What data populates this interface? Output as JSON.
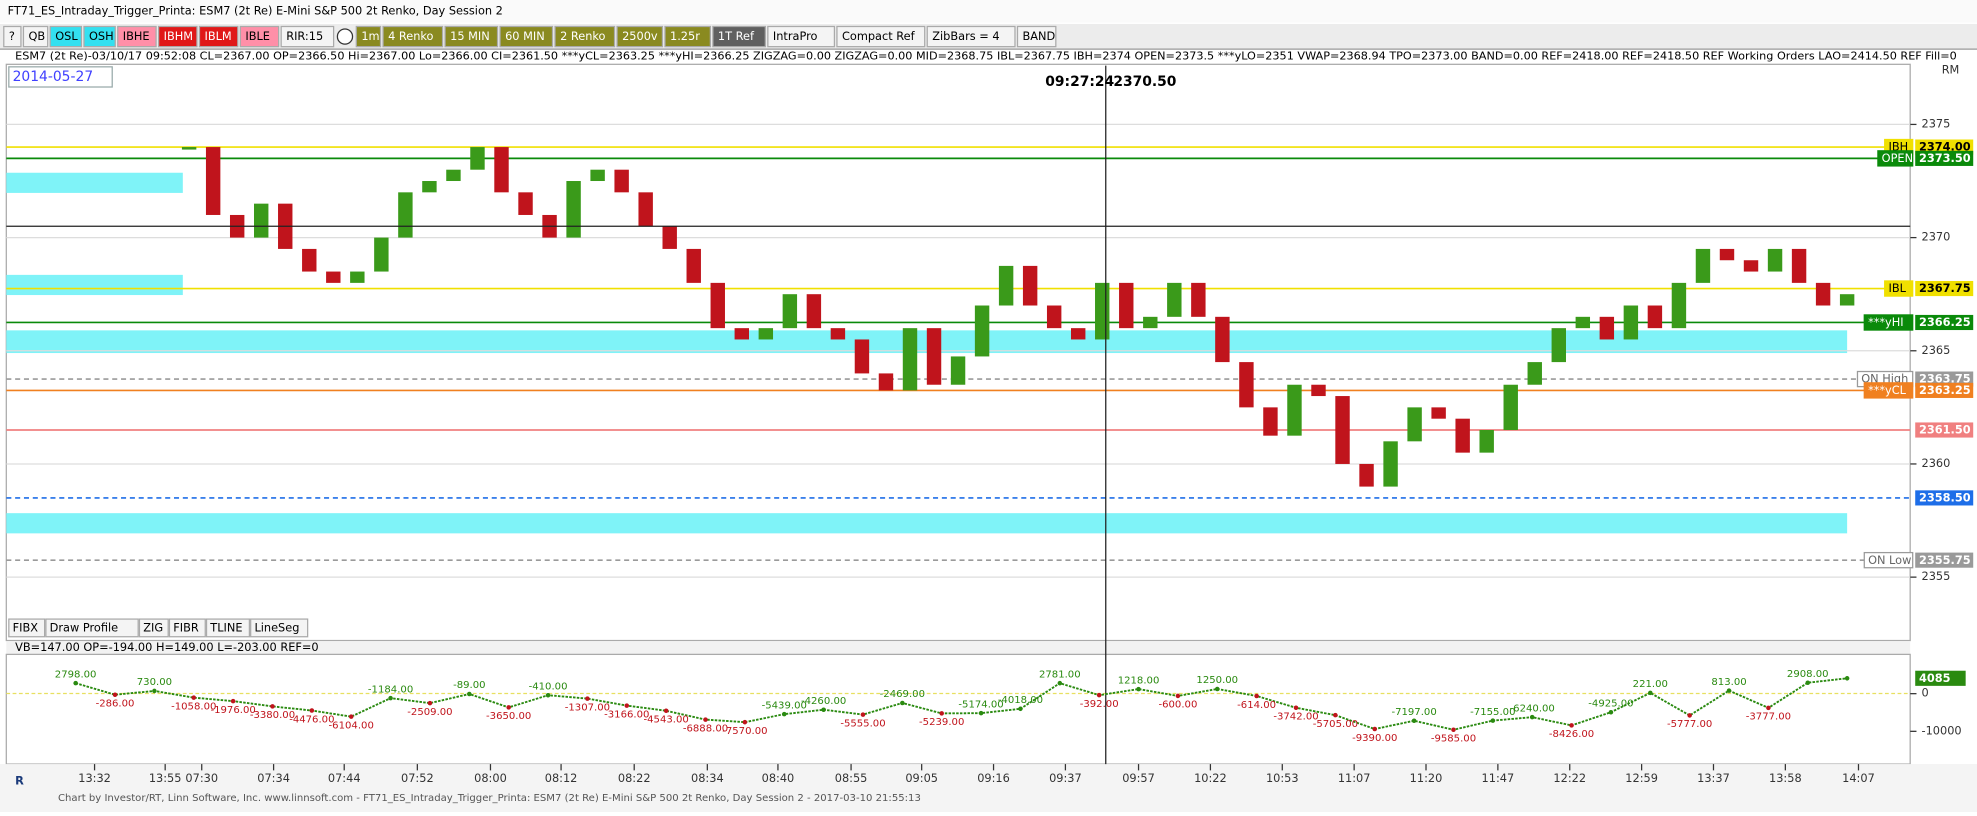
{
  "window": {
    "title": "FT71_ES_Intraday_Trigger_Printa: ESM7 (2t Re) E-Mini S&P 500 2t Renko, Day Session 2"
  },
  "toolbar": [
    {
      "label": "?",
      "color": "#f4f4f4"
    },
    {
      "label": "QB",
      "color": "#f4f4f4"
    },
    {
      "label": "OSL",
      "color": "#33e0f0"
    },
    {
      "label": "OSH",
      "color": "#33e0f0"
    },
    {
      "label": "IBHE",
      "color": "#ff8fa8"
    },
    {
      "label": "IBHM",
      "color": "#e01818"
    },
    {
      "label": "IBLM",
      "color": "#e01818"
    },
    {
      "label": "IBLE",
      "color": "#ff8fa8"
    },
    {
      "label": "RIR:15",
      "color": "#f4f4f4"
    },
    {
      "label": "1m",
      "color": "#8a8a20"
    },
    {
      "label": "4 Renko",
      "color": "#8a8a20"
    },
    {
      "label": "15 MIN",
      "color": "#8a8a20"
    },
    {
      "label": "60 MIN",
      "color": "#8a8a20"
    },
    {
      "label": "2 Renko",
      "color": "#8a8a20"
    },
    {
      "label": "2500v",
      "color": "#8a8a20"
    },
    {
      "label": "1.25r",
      "color": "#8a8a20"
    },
    {
      "label": "1T Ref",
      "color": "#606060"
    },
    {
      "label": "IntraPro",
      "color": "#f4f4f4"
    },
    {
      "label": "Compact Ref",
      "color": "#f4f4f4"
    },
    {
      "label": "ZibBars = 4",
      "color": "#f4f4f4"
    },
    {
      "label": "BAND",
      "color": "#f4f4f4"
    }
  ],
  "indicator_legend": "ESM7 (2t Re)-03/10/17 09:52:08 CL=2367.00 OP=2366.50 Hi=2367.00 Lo=2366.00 CI=2361.50 ***yCL=2363.25 ***yHI=2366.25 ZIGZAG=0.00 ZIGZAG=0.00 MID=2368.75 IBL=2367.75 IBH=2374 OPEN=2373.5 ***yLO=2351 VWAP=2368.94 TPO=2373.00 BAND=0.00 REF=2418.00 REF=2418.50 REF Working Orders LAO=2414.50 REF Fill=0",
  "date_label": "2014-05-27",
  "drawing_tools": [
    "FIBX",
    "Draw Profile",
    "ZIG",
    "FIBR",
    "TLINE",
    "LineSeg"
  ],
  "corner_label": "RM",
  "chart_data": [
    {
      "type": "renko",
      "ylim": [
        2352.2,
        2377.6
      ],
      "yticks": [
        2355,
        2360,
        2365,
        2370,
        2375
      ],
      "up_color": "#3a9a1a",
      "down_color": "#c0141c",
      "values": [
        2374,
        2371,
        2370,
        2371.5,
        2369.5,
        2368.5,
        2368,
        2368.5,
        2370,
        2372,
        2372.5,
        2373,
        2374,
        2372,
        2371,
        2370,
        2372.5,
        2373,
        2372,
        2370.5,
        2369.5,
        2368,
        2366,
        2365.5,
        2366,
        2367.5,
        2366,
        2365.5,
        2364,
        2363.25,
        2366,
        2363.5,
        2364.75,
        2367,
        2368.75,
        2367,
        2366,
        2365.5,
        2368,
        2366,
        2366.5,
        2368,
        2366.5,
        2364.5,
        2362.5,
        2361.25,
        2363.5,
        2363,
        2360,
        2359,
        2361,
        2362.5,
        2362,
        2360.5,
        2361.5,
        2363.5,
        2364.5,
        2366,
        2366.5,
        2365.5,
        2367,
        2366,
        2368,
        2369.5,
        2369,
        2368.5,
        2369.5,
        2368,
        2367,
        2367.5
      ],
      "x_labels": [
        "13:32",
        "13:55",
        "07:30",
        "07:34",
        "07:44",
        "07:52",
        "08:00",
        "08:12",
        "08:22",
        "08:34",
        "08:40",
        "08:55",
        "09:05",
        "09:16",
        "09:37",
        "09:57",
        "10:22",
        "10:53",
        "11:07",
        "11:20",
        "11:47",
        "12:22",
        "12:59",
        "13:37",
        "13:58",
        "14:07"
      ],
      "levels": [
        {
          "name": "IBH",
          "value": 2374,
          "value_label": "2374.00",
          "color": "#f0e000"
        },
        {
          "name": "OPEN",
          "value": 2373.5,
          "value_label": "2373.50",
          "color": "#0a8a0a"
        },
        {
          "name": "IBL",
          "value": 2367.75,
          "value_label": "2367.75",
          "color": "#f0e000"
        },
        {
          "name": "***yHI",
          "value": 2366.25,
          "value_label": "2366.25",
          "color": "#0a8a0a"
        },
        {
          "name": "ON High",
          "value": 2363.75,
          "value_label": "2363.75",
          "color": "#9a9a9a"
        },
        {
          "name": "***yCL",
          "value": 2363.25,
          "value_label": "2363.25",
          "color": "#f08020"
        },
        {
          "value": 2361.5,
          "value_label": "2361.50",
          "color": "#f08080"
        },
        {
          "value": 2358.5,
          "value_label": "2358.50",
          "color": "#1e6ee8"
        },
        {
          "name": "ON Low",
          "value": 2355.75,
          "value_label": "2355.75",
          "color": "#9a9a9a"
        }
      ],
      "crosshair": {
        "time": "09:27:24",
        "value": 2370.5,
        "value_label": "2370.50"
      }
    },
    {
      "type": "line",
      "legend": "VB=147.00 OP=-194.00 H=149.00 L=-203.00 REF=0",
      "ylim": [
        -18700,
        10100
      ],
      "yticks": [
        0,
        -10000
      ],
      "color": "#2a8a10",
      "down_color": "#c0141c",
      "last_value": 4085,
      "values": [
        2798,
        -286,
        730,
        -1058,
        -1976,
        -3380,
        -4476,
        -6104,
        -1184,
        -2509,
        -89,
        -3650,
        -410,
        -1307,
        -3166,
        -4543,
        -6888,
        -7570,
        -5439,
        -4260,
        -5555,
        -2469,
        -5239,
        -5174,
        -4018,
        2781,
        -392,
        1218,
        -600,
        1250,
        -614,
        -3742,
        -5705,
        -9390,
        -7197,
        -9585,
        -7155,
        -6240,
        -8426,
        -4925,
        221,
        -5777,
        813,
        -3777,
        2908,
        4085
      ],
      "value_labels": [
        "2798.00",
        "-286.00",
        "730.00",
        "-1058.00",
        "-1976.00",
        "-3380.00",
        "-4476.00",
        "-6104.00",
        "-1184.00",
        "-2509.00",
        "-89.00",
        "-3650.00",
        "-410.00",
        "-1307.00",
        "-3166.00",
        "-4543.00",
        "-6888.00",
        "-7570.00",
        "-5439.00",
        "-4260.00",
        "-5555.00",
        "-2469.00",
        "-5239.00",
        "-5174.00",
        "-4018.00",
        "2781.00",
        "-392.00",
        "1218.00",
        "-600.00",
        "1250.00",
        "-614.00",
        "-3742.00",
        "-5705.00",
        "-9390.00",
        "-7197.00",
        "-9585.00",
        "-7155.00",
        "-6240.00",
        "-8426.00",
        "-4925.00",
        "221.00",
        "-5777.00",
        "813.00",
        "-3777.00",
        "2908.00",
        "4085"
      ]
    }
  ],
  "footer": "Chart by Investor/RT, Linn Software, Inc. www.linnsoft.com - FT71_ES_Intraday_Trigger_Printa: ESM7 (2t Re) E-Mini S&P 500 2t Renko, Day Session 2 - 2017-03-10 21:55:13"
}
